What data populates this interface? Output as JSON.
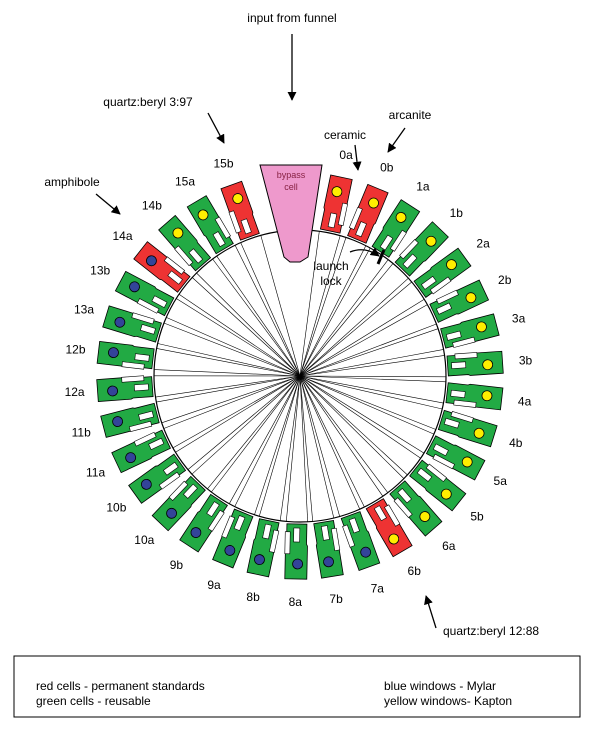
{
  "annotations": {
    "input": "input from funnel",
    "quartz_beryl_top": "quartz:beryl 3:97",
    "ceramic": "ceramic",
    "arcanite": "arcanite",
    "amphibole": "amphibole",
    "quartz_beryl_bottom": "quartz:beryl 12:88",
    "bypass": [
      "bypass",
      "cell"
    ],
    "launch_lock": [
      "launch",
      "lock"
    ]
  },
  "cells": [
    {
      "label": "0a",
      "fill": "#ee3333",
      "window": "#ffee00"
    },
    {
      "label": "0b",
      "fill": "#ee3333",
      "window": "#ffee00"
    },
    {
      "label": "1a",
      "fill": "#22aa44",
      "window": "#ffee00"
    },
    {
      "label": "1b",
      "fill": "#22aa44",
      "window": "#ffee00"
    },
    {
      "label": "2a",
      "fill": "#22aa44",
      "window": "#ffee00"
    },
    {
      "label": "2b",
      "fill": "#22aa44",
      "window": "#ffee00"
    },
    {
      "label": "3a",
      "fill": "#22aa44",
      "window": "#ffee00"
    },
    {
      "label": "3b",
      "fill": "#22aa44",
      "window": "#ffee00"
    },
    {
      "label": "4a",
      "fill": "#22aa44",
      "window": "#ffee00"
    },
    {
      "label": "4b",
      "fill": "#22aa44",
      "window": "#ffee00"
    },
    {
      "label": "5a",
      "fill": "#22aa44",
      "window": "#ffee00"
    },
    {
      "label": "5b",
      "fill": "#22aa44",
      "window": "#ffee00"
    },
    {
      "label": "6a",
      "fill": "#22aa44",
      "window": "#ffee00"
    },
    {
      "label": "6b",
      "fill": "#ee3333",
      "window": "#ffee00"
    },
    {
      "label": "7a",
      "fill": "#22aa44",
      "window": "#334499"
    },
    {
      "label": "7b",
      "fill": "#22aa44",
      "window": "#334499"
    },
    {
      "label": "8a",
      "fill": "#22aa44",
      "window": "#334499"
    },
    {
      "label": "8b",
      "fill": "#22aa44",
      "window": "#334499"
    },
    {
      "label": "9a",
      "fill": "#22aa44",
      "window": "#334499"
    },
    {
      "label": "9b",
      "fill": "#22aa44",
      "window": "#334499"
    },
    {
      "label": "10a",
      "fill": "#22aa44",
      "window": "#334499"
    },
    {
      "label": "10b",
      "fill": "#22aa44",
      "window": "#334499"
    },
    {
      "label": "11a",
      "fill": "#22aa44",
      "window": "#334499"
    },
    {
      "label": "11b",
      "fill": "#22aa44",
      "window": "#334499"
    },
    {
      "label": "12a",
      "fill": "#22aa44",
      "window": "#334499"
    },
    {
      "label": "12b",
      "fill": "#22aa44",
      "window": "#334499"
    },
    {
      "label": "13a",
      "fill": "#22aa44",
      "window": "#334499"
    },
    {
      "label": "13b",
      "fill": "#22aa44",
      "window": "#334499"
    },
    {
      "label": "14a",
      "fill": "#ee3333",
      "window": "#334499"
    },
    {
      "label": "14b",
      "fill": "#22aa44",
      "window": "#ffee00"
    },
    {
      "label": "15a",
      "fill": "#22aa44",
      "window": "#ffee00"
    },
    {
      "label": "15b",
      "fill": "#ee3333",
      "window": "#ffee00"
    }
  ],
  "legend": {
    "red": "red cells - permanent standards",
    "green": "green cells - reusable",
    "blue": "blue windows - Mylar",
    "yellow": "yellow windows- Kapton"
  }
}
